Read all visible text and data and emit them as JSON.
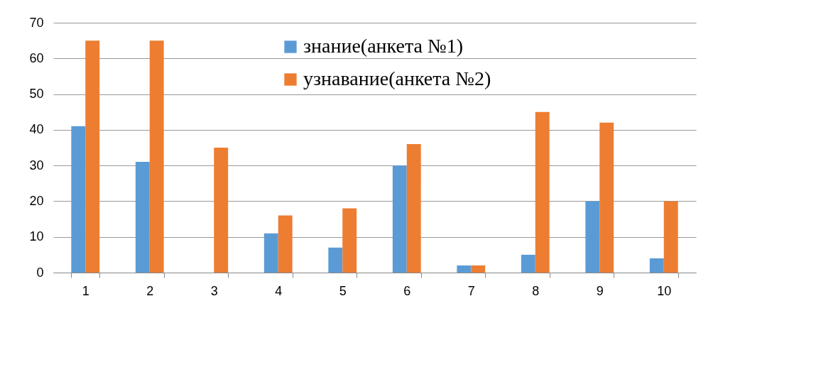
{
  "chart_data": {
    "type": "bar",
    "categories": [
      "1",
      "2",
      "3",
      "4",
      "5",
      "6",
      "7",
      "8",
      "9",
      "10"
    ],
    "series": [
      {
        "name": "знание(анкета №1)",
        "color": "#5b9bd5",
        "values": [
          41,
          31,
          0,
          11,
          7,
          30,
          2,
          5,
          20,
          4
        ]
      },
      {
        "name": "узнавание(анкета №2)",
        "color": "#ed7d31",
        "values": [
          65,
          65,
          35,
          16,
          18,
          36,
          2,
          45,
          42,
          20
        ]
      }
    ],
    "ylim": [
      0,
      70
    ],
    "yticks": [
      0,
      10,
      20,
      30,
      40,
      50,
      60,
      70
    ],
    "grid": "y",
    "legend": "top"
  }
}
